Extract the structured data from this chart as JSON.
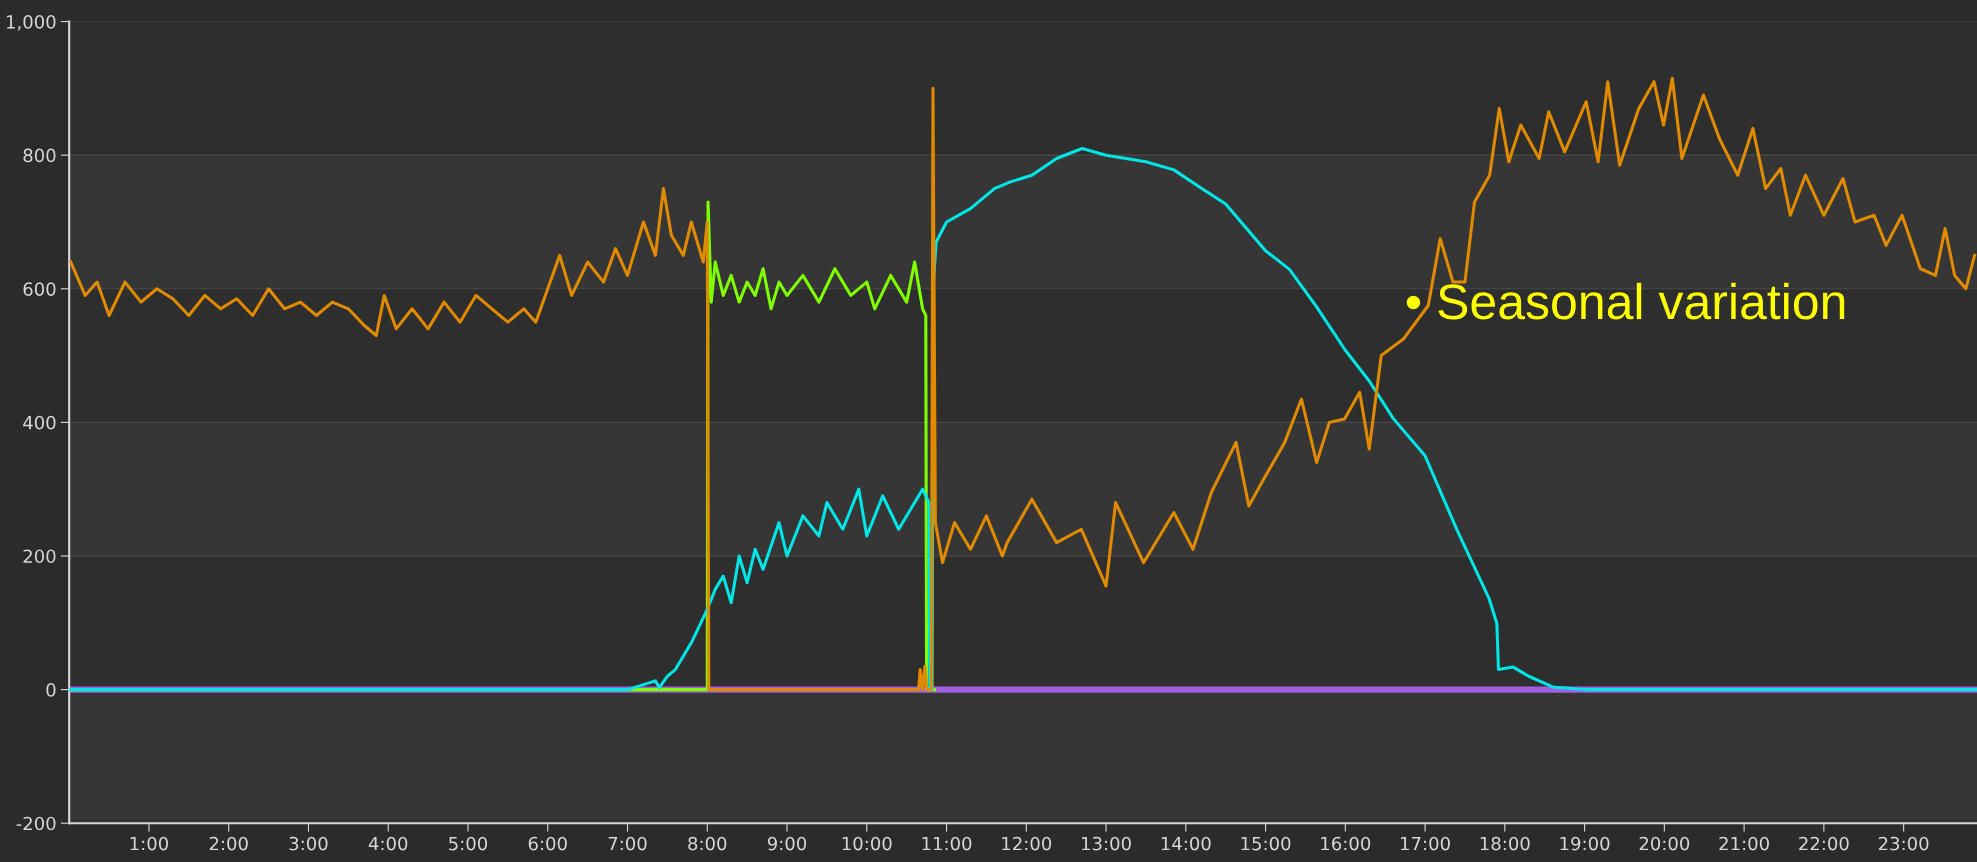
{
  "chart_data": {
    "type": "line",
    "annotations": [
      "• Seasonal variation"
    ],
    "xlim": [
      0,
      23.92
    ],
    "ylim": [
      -200,
      1000
    ],
    "xticks": [
      {
        "value": 1,
        "label": "1:00"
      },
      {
        "value": 2,
        "label": "2:00"
      },
      {
        "value": 3,
        "label": "3:00"
      },
      {
        "value": 4,
        "label": "4:00"
      },
      {
        "value": 5,
        "label": "5:00"
      },
      {
        "value": 6,
        "label": "6:00"
      },
      {
        "value": 7,
        "label": "7:00"
      },
      {
        "value": 8,
        "label": "8:00"
      },
      {
        "value": 9,
        "label": "9:00"
      },
      {
        "value": 10,
        "label": "10:00"
      },
      {
        "value": 11,
        "label": "11:00"
      },
      {
        "value": 12,
        "label": "12:00"
      },
      {
        "value": 13,
        "label": "13:00"
      },
      {
        "value": 14,
        "label": "14:00"
      },
      {
        "value": 15,
        "label": "15:00"
      },
      {
        "value": 16,
        "label": "16:00"
      },
      {
        "value": 17,
        "label": "17:00"
      },
      {
        "value": 18,
        "label": "18:00"
      },
      {
        "value": 19,
        "label": "19:00"
      },
      {
        "value": 20,
        "label": "20:00"
      },
      {
        "value": 21,
        "label": "21:00"
      },
      {
        "value": 22,
        "label": "22:00"
      },
      {
        "value": 23,
        "label": "23:00"
      }
    ],
    "yticks": [
      -200,
      0,
      200,
      400,
      600,
      800,
      {
        "value": 1000,
        "label": "1,000"
      }
    ],
    "grid": "y",
    "line_style": "solid",
    "marker": "none",
    "series": [
      {
        "color": "#a060e0",
        "x": [
          0,
          23.92
        ],
        "values": [
          0,
          0
        ]
      },
      {
        "color": "#80ff00",
        "x": [
          0,
          8.0,
          8.01,
          8.05,
          8.1,
          8.2,
          8.3,
          8.4,
          8.5,
          8.6,
          8.7,
          8.8,
          8.9,
          9.0,
          9.2,
          9.4,
          9.6,
          9.8,
          10.0,
          10.1,
          10.3,
          10.5,
          10.6,
          10.7,
          10.74,
          10.75,
          10.85
        ],
        "values": [
          0,
          0,
          730,
          580,
          640,
          590,
          620,
          580,
          610,
          590,
          630,
          570,
          610,
          590,
          620,
          580,
          630,
          590,
          610,
          570,
          620,
          580,
          640,
          570,
          560,
          0,
          0
        ]
      },
      {
        "color": "#00e5e5",
        "x": [
          0,
          7.0,
          7.35,
          7.4,
          7.5,
          7.6,
          7.8,
          8.0,
          8.1,
          8.2,
          8.3,
          8.4,
          8.5,
          8.6,
          8.7,
          8.9,
          9.0,
          9.2,
          9.4,
          9.5,
          9.7,
          9.9,
          10.0,
          10.2,
          10.4,
          10.55,
          10.7,
          10.78,
          10.79,
          10.82,
          10.83,
          10.87,
          11.0,
          11.3,
          11.6,
          11.8,
          12.07,
          12.38,
          12.7,
          13.0,
          13.5,
          13.85,
          14.2,
          14.5,
          15.0,
          15.3,
          15.64,
          16.0,
          16.3,
          16.6,
          17.0,
          17.4,
          17.8,
          17.9,
          17.92,
          18.1,
          18.3,
          18.6,
          19.0,
          23.92
        ],
        "values": [
          0,
          0,
          13,
          3,
          20,
          30,
          70,
          120,
          150,
          170,
          130,
          200,
          160,
          210,
          180,
          250,
          200,
          260,
          230,
          280,
          240,
          300,
          230,
          290,
          240,
          270,
          300,
          280,
          0,
          0,
          600,
          670,
          700,
          720,
          750,
          760,
          770,
          795,
          810,
          800,
          790,
          778,
          750,
          727,
          657,
          629,
          573,
          508,
          462,
          406,
          350,
          239,
          137,
          99,
          30,
          34,
          20,
          4,
          0,
          0
        ]
      },
      {
        "color": "#e08a00",
        "x": [
          0.02,
          0.2,
          0.35,
          0.5,
          0.7,
          0.9,
          1.1,
          1.3,
          1.5,
          1.7,
          1.9,
          2.1,
          2.3,
          2.5,
          2.7,
          2.9,
          3.1,
          3.3,
          3.5,
          3.7,
          3.85,
          3.95,
          4.1,
          4.3,
          4.5,
          4.7,
          4.9,
          5.1,
          5.3,
          5.5,
          5.7,
          5.85,
          6.0,
          6.15,
          6.3,
          6.5,
          6.7,
          6.85,
          7.0,
          7.2,
          7.35,
          7.45,
          7.55,
          7.7,
          7.8,
          7.95,
          8.0,
          8.02,
          10.65,
          10.67,
          10.7,
          10.73,
          10.75,
          10.81,
          10.83,
          10.86,
          10.95,
          11.1,
          11.3,
          11.5,
          11.7,
          11.76,
          12.07,
          12.38,
          12.69,
          13.0,
          13.12,
          13.47,
          13.85,
          14.09,
          14.32,
          14.63,
          14.79,
          15.0,
          15.24,
          15.45,
          15.64,
          15.8,
          15.99,
          16.18,
          16.3,
          16.45,
          16.73,
          17.04,
          17.19,
          17.35,
          17.5,
          17.62,
          17.81,
          17.93,
          18.05,
          18.2,
          18.43,
          18.55,
          18.75,
          19.02,
          19.17,
          19.29,
          19.44,
          19.68,
          19.87,
          19.99,
          20.1,
          20.22,
          20.49,
          20.69,
          20.92,
          21.11,
          21.27,
          21.46,
          21.58,
          21.77,
          22.0,
          22.24,
          22.39,
          22.63,
          22.78,
          22.98,
          23.21,
          23.4,
          23.52,
          23.64,
          23.78,
          23.89
        ],
        "values": [
          640,
          590,
          610,
          560,
          610,
          580,
          600,
          585,
          560,
          590,
          570,
          585,
          560,
          600,
          570,
          580,
          560,
          580,
          570,
          545,
          530,
          590,
          540,
          570,
          540,
          580,
          550,
          590,
          570,
          550,
          570,
          550,
          600,
          650,
          590,
          640,
          610,
          660,
          620,
          700,
          650,
          750,
          680,
          650,
          700,
          640,
          700,
          0,
          0,
          30,
          0,
          35,
          0,
          0,
          900,
          250,
          190,
          250,
          210,
          260,
          200,
          220,
          285,
          220,
          240,
          155,
          280,
          190,
          265,
          210,
          295,
          370,
          275,
          320,
          370,
          435,
          340,
          400,
          405,
          445,
          360,
          500,
          525,
          575,
          675,
          610,
          610,
          730,
          770,
          870,
          790,
          845,
          795,
          865,
          805,
          880,
          790,
          910,
          785,
          870,
          910,
          845,
          915,
          795,
          890,
          825,
          770,
          840,
          750,
          780,
          710,
          770,
          710,
          765,
          700,
          710,
          665,
          710,
          630,
          620,
          690,
          620,
          600,
          650
        ]
      }
    ]
  }
}
